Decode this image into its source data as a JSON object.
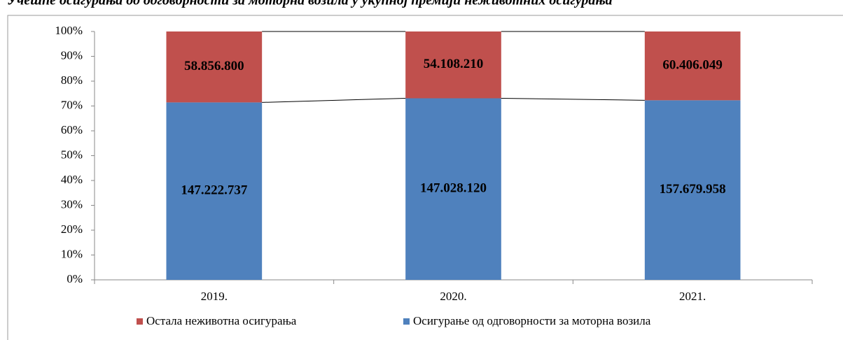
{
  "chart_data": {
    "type": "bar",
    "stacking": "percent",
    "title": "Учешће осигурања од одговорности за моторна возила у укупној премији неживотних осигурања",
    "categories": [
      "2019.",
      "2020.",
      "2021."
    ],
    "series": [
      {
        "name": "Осигурање од одговорности за моторна возила",
        "color": "#4f81bd",
        "values": [
          147222737,
          147028120,
          157679958
        ],
        "value_labels": [
          "147.222.737",
          "147.028.120",
          "157.679.958"
        ]
      },
      {
        "name": "Остала неживотна осигурања",
        "color": "#c0504d",
        "values": [
          58856800,
          54108210,
          60406049
        ],
        "value_labels": [
          "58.856.800",
          "54.108.210",
          "60.406.049"
        ]
      }
    ],
    "ylim": [
      0,
      100
    ],
    "yticks": [
      {
        "value": 0,
        "label": "0%"
      },
      {
        "value": 10,
        "label": "10%"
      },
      {
        "value": 20,
        "label": "20%"
      },
      {
        "value": 30,
        "label": "30%"
      },
      {
        "value": 40,
        "label": "40%"
      },
      {
        "value": 50,
        "label": "50%"
      },
      {
        "value": 60,
        "label": "60%"
      },
      {
        "value": 70,
        "label": "70%"
      },
      {
        "value": 80,
        "label": "80%"
      },
      {
        "value": 90,
        "label": "90%"
      },
      {
        "value": 100,
        "label": "100%"
      }
    ],
    "legend": "bottom"
  }
}
